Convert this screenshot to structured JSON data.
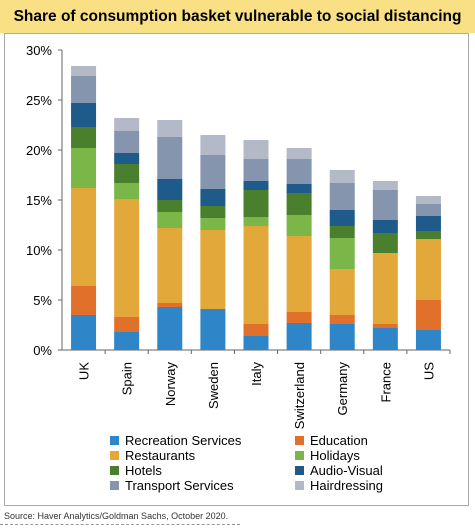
{
  "title": "Share of consumption basket vulnerable to social distancing",
  "source": "Source: Haver Analytics/Goldman Sachs, October 2020.",
  "chart_data": {
    "type": "bar",
    "stacked": true,
    "categories": [
      "UK",
      "Spain",
      "Norway",
      "Sweden",
      "Italy",
      "Switzerland",
      "Germany",
      "France",
      "US"
    ],
    "yticks": [
      "0%",
      "5%",
      "10%",
      "15%",
      "20%",
      "25%",
      "30%"
    ],
    "ylim": [
      0,
      30
    ],
    "legend_position": "bottom",
    "series": [
      {
        "name": "Recreation Services",
        "color": "#2e86c8",
        "values": [
          3.5,
          1.8,
          4.3,
          4.1,
          1.4,
          2.7,
          2.6,
          2.2,
          2.0
        ]
      },
      {
        "name": "Education",
        "color": "#e0702a",
        "values": [
          2.9,
          1.5,
          0.4,
          0.0,
          1.2,
          1.1,
          0.9,
          0.4,
          3.0
        ]
      },
      {
        "name": "Restaurants",
        "color": "#e3a83a",
        "values": [
          9.8,
          11.8,
          7.5,
          7.9,
          9.8,
          7.6,
          4.6,
          7.1,
          6.1
        ]
      },
      {
        "name": "Holidays",
        "color": "#7ab648",
        "values": [
          4.0,
          1.6,
          1.6,
          1.2,
          0.9,
          2.1,
          3.1,
          0.0,
          0.0
        ]
      },
      {
        "name": "Hotels",
        "color": "#4a7f2e",
        "values": [
          2.1,
          1.9,
          1.2,
          1.2,
          2.7,
          2.2,
          1.2,
          2.0,
          0.8
        ]
      },
      {
        "name": "Audio-Visual",
        "color": "#1e5b8a",
        "values": [
          2.4,
          1.1,
          2.1,
          1.7,
          0.9,
          0.9,
          1.6,
          1.3,
          1.5
        ]
      },
      {
        "name": "Transport Services",
        "color": "#8595ae",
        "values": [
          2.7,
          2.2,
          4.2,
          3.4,
          2.2,
          2.5,
          2.7,
          3.0,
          1.2
        ]
      },
      {
        "name": "Hairdressing",
        "color": "#b4b9c8",
        "values": [
          1.0,
          1.3,
          1.7,
          2.0,
          1.9,
          1.1,
          1.3,
          0.9,
          0.8
        ]
      }
    ]
  }
}
